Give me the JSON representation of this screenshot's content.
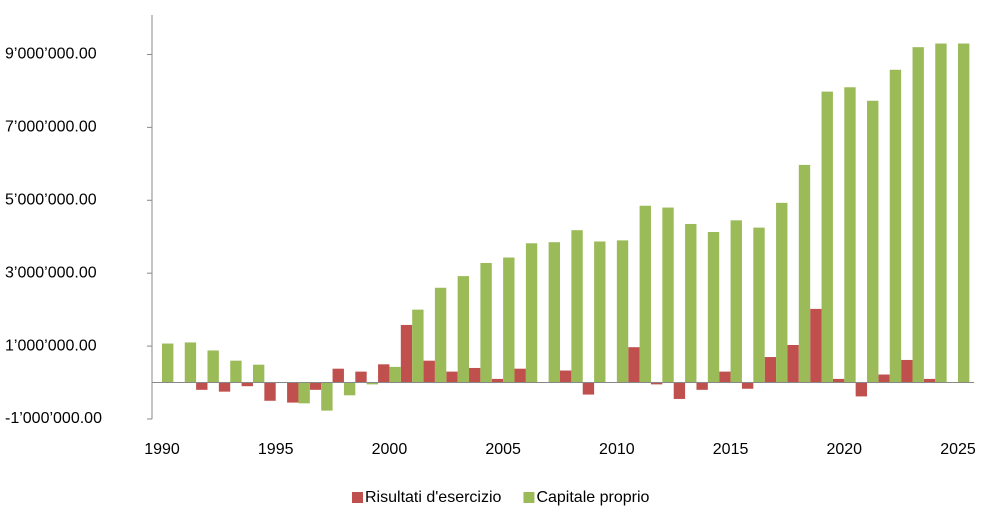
{
  "chart_data": {
    "type": "bar",
    "x": [
      1990,
      1991,
      1992,
      1993,
      1994,
      1995,
      1996,
      1997,
      1998,
      1999,
      2000,
      2001,
      2002,
      2003,
      2004,
      2005,
      2006,
      2007,
      2008,
      2009,
      2010,
      2011,
      2012,
      2013,
      2014,
      2015,
      2016,
      2017,
      2018,
      2019,
      2020,
      2021,
      2022,
      2023,
      2024,
      2025
    ],
    "series": [
      {
        "name": "Risultati d'esercizio",
        "color": "#c0504d",
        "values": [
          0,
          0,
          -200000,
          -250000,
          -100000,
          -500000,
          -550000,
          -200000,
          380000,
          300000,
          500000,
          1580000,
          600000,
          300000,
          400000,
          100000,
          380000,
          0,
          330000,
          -330000,
          0,
          970000,
          -50000,
          -450000,
          -200000,
          300000,
          -170000,
          700000,
          1030000,
          2020000,
          100000,
          -380000,
          220000,
          620000,
          100000,
          0
        ]
      },
      {
        "name": "Capitale proprio",
        "color": "#9bbb59",
        "values": [
          1070000,
          1100000,
          880000,
          600000,
          490000,
          0,
          -570000,
          -770000,
          -350000,
          -50000,
          430000,
          2000000,
          2600000,
          2920000,
          3280000,
          3430000,
          3820000,
          3850000,
          4180000,
          3870000,
          3900000,
          4850000,
          4800000,
          4350000,
          4130000,
          4450000,
          4250000,
          4930000,
          5970000,
          7980000,
          8100000,
          7730000,
          8580000,
          9200000,
          9300000,
          9300000
        ]
      }
    ],
    "xlim": [
      1990,
      2025
    ],
    "xticks": [
      1990,
      1995,
      2000,
      2005,
      2010,
      2015,
      2020,
      2025
    ],
    "ylim": [
      -1000000,
      10000000
    ],
    "yticks": [
      {
        "value": -1000000,
        "label": "-1’000’000.00"
      },
      {
        "value": 1000000,
        "label": "1’000’000.00"
      },
      {
        "value": 3000000,
        "label": "3’000’000.00"
      },
      {
        "value": 5000000,
        "label": "5’000’000.00"
      },
      {
        "value": 7000000,
        "label": "7’000’000.00"
      },
      {
        "value": 9000000,
        "label": "9’000’000.00"
      }
    ],
    "legend": "bottom"
  }
}
